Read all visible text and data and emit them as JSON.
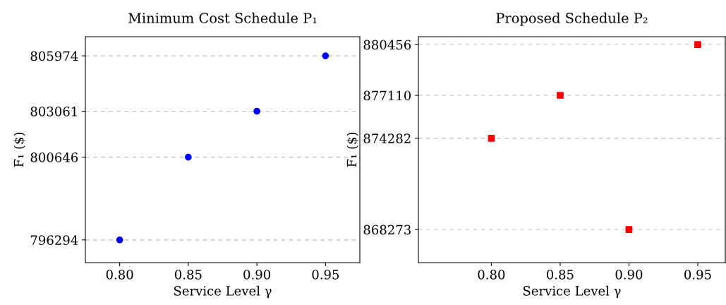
{
  "chart_data": [
    {
      "type": "scatter",
      "title": "Minimum Cost Schedule P₁",
      "xlabel": "Service Level γ",
      "ylabel": "F₁ ($)",
      "x": [
        0.8,
        0.85,
        0.9,
        0.95
      ],
      "series": [
        {
          "color": "#0000ff",
          "values": [
            796294,
            800646,
            803061,
            805974
          ]
        }
      ],
      "marker": "circle",
      "xlim": [
        0.775,
        0.975
      ],
      "xticks": [
        {
          "value": 0.8,
          "label": "0.80"
        },
        {
          "value": 0.85,
          "label": "0.85"
        },
        {
          "value": 0.9,
          "label": "0.90"
        },
        {
          "value": 0.95,
          "label": "0.95"
        }
      ],
      "ylim": [
        795100,
        806980
      ],
      "yticks": [
        796294,
        800646,
        803061,
        805974
      ],
      "grid": "y"
    },
    {
      "type": "scatter",
      "title": "Proposed Schedule P₂",
      "xlabel": "Service Level γ",
      "ylabel": "F₁ ($)",
      "x": [
        0.8,
        0.85,
        0.9,
        0.95
      ],
      "series": [
        {
          "color": "#ff0000",
          "values": [
            874282,
            877110,
            868273,
            880456
          ]
        }
      ],
      "marker": "square",
      "xlim": [
        0.747,
        0.97
      ],
      "xticks": [
        {
          "value": 0.8,
          "label": "0.80"
        },
        {
          "value": 0.85,
          "label": "0.85"
        },
        {
          "value": 0.9,
          "label": "0.90"
        },
        {
          "value": 0.95,
          "label": "0.95"
        }
      ],
      "ylim": [
        866090,
        880970
      ],
      "yticks": [
        868273,
        874282,
        877110,
        880456
      ],
      "grid": "y"
    }
  ]
}
